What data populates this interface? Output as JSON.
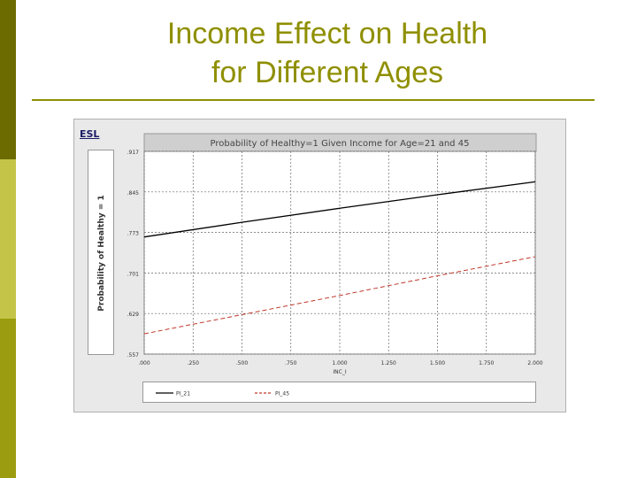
{
  "slide": {
    "title_line1": "Income Effect on Health",
    "title_line2": "for Different Ages",
    "shot_label": "ESL"
  },
  "colors": {
    "accent": "#8f8f00",
    "sidebar_dark": "#6b6b00",
    "sidebar_light": "#c4c448",
    "series_21": "#000000",
    "series_45": "#c0392b"
  },
  "chart_data": {
    "type": "line",
    "title": "Probability of Healthy=1 Given Income for Age=21 and 45",
    "xlabel": "INC_I",
    "ylabel": "Probability of Healthy = 1",
    "xlim": [
      0,
      2.0
    ],
    "ylim": [
      0.557,
      0.917
    ],
    "x_ticks": [
      0,
      0.25,
      0.5,
      0.75,
      1.0,
      1.25,
      1.5,
      1.75,
      2.0
    ],
    "x_tick_labels": [
      ".000",
      ".250",
      ".500",
      ".750",
      "1.000",
      "1.250",
      "1.500",
      "1.750",
      "2.000"
    ],
    "y_ticks": [
      0.917,
      0.845,
      0.773,
      0.701,
      0.629,
      0.557
    ],
    "y_tick_labels": [
      ".917",
      ".845",
      ".773",
      ".701",
      ".629",
      ".557"
    ],
    "grid": true,
    "legend_position": "bottom",
    "series": [
      {
        "name": "PI_21",
        "color": "#000000",
        "dash": "",
        "x": [
          0,
          0.5,
          1.0,
          1.5,
          2.0
        ],
        "values": [
          0.765,
          0.791,
          0.816,
          0.84,
          0.863
        ]
      },
      {
        "name": "PI_45",
        "color": "#c0392b",
        "dash": "5,3",
        "x": [
          0,
          0.5,
          1.0,
          1.5,
          2.0
        ],
        "values": [
          0.593,
          0.627,
          0.661,
          0.696,
          0.73
        ]
      }
    ]
  }
}
